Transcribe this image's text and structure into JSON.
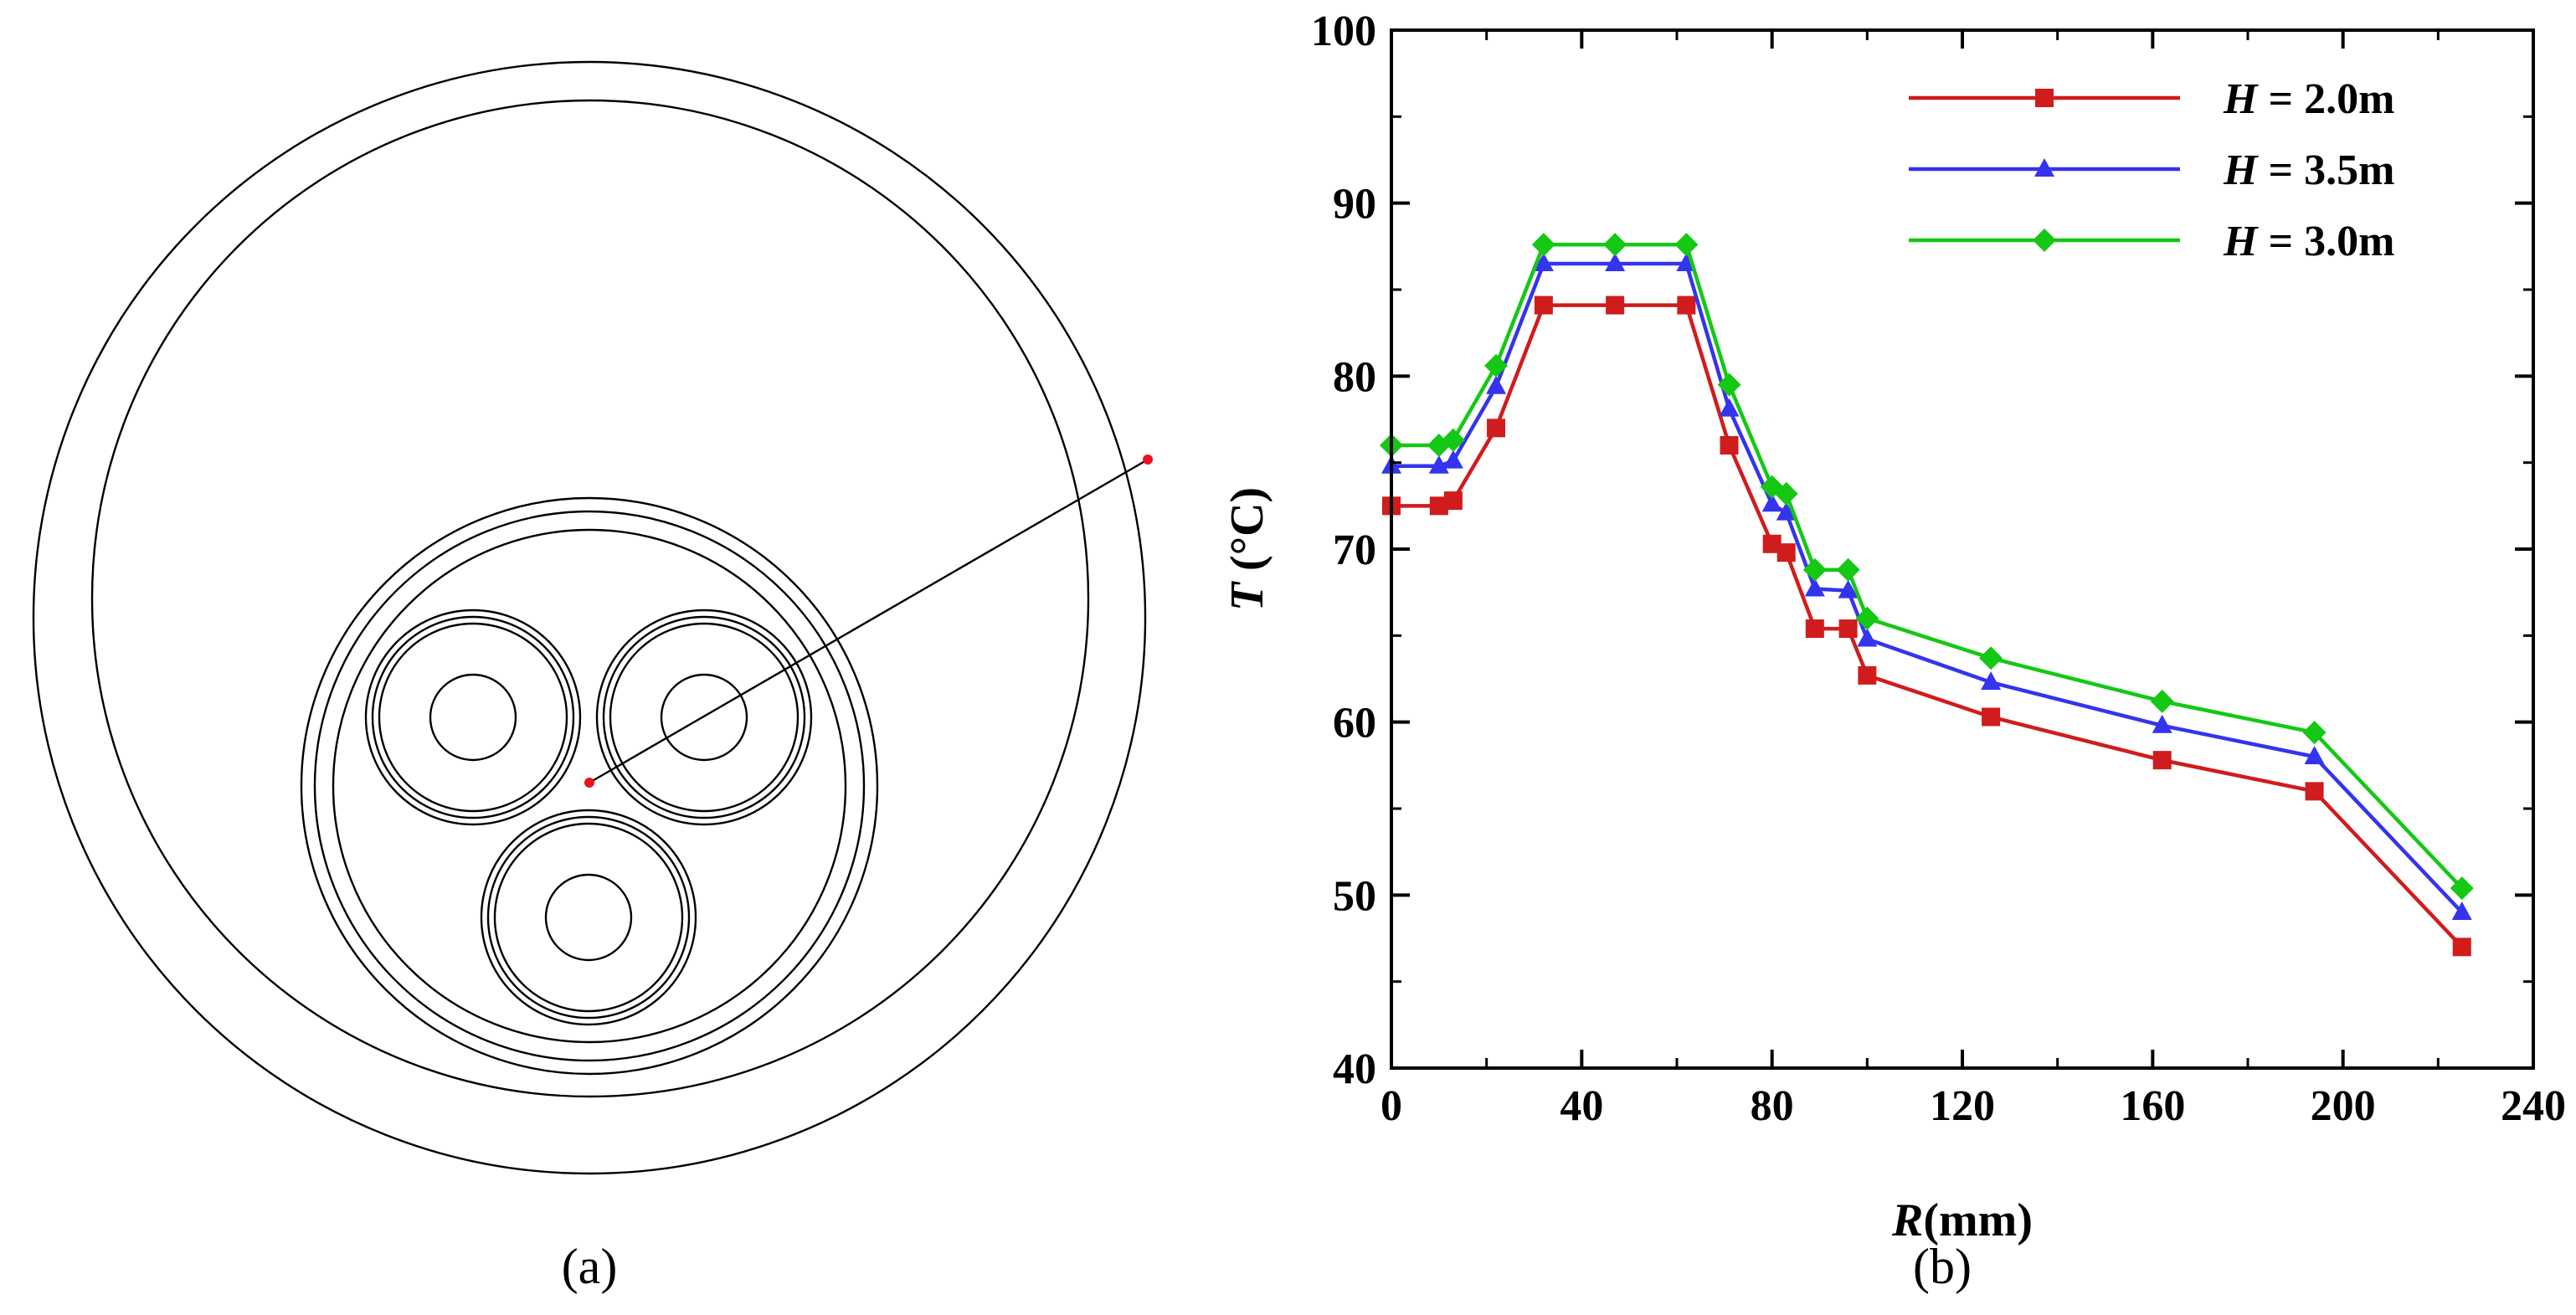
{
  "panels": {
    "a_label": "(a)",
    "b_label": "(b)"
  },
  "cross_section": {
    "marker_color": "#e8141c"
  },
  "chart_data": {
    "type": "line",
    "title": "",
    "xlabel_italic": "R",
    "xlabel_rest": "(mm)",
    "ylabel_italic": "T",
    "ylabel_rest": " (°C)",
    "xlim": [
      0,
      240
    ],
    "ylim": [
      40,
      100
    ],
    "xticks": [
      0,
      40,
      80,
      120,
      160,
      200,
      240
    ],
    "yticks": [
      40,
      50,
      60,
      70,
      80,
      90,
      100
    ],
    "grid": false,
    "legend_position": "top-right",
    "series": [
      {
        "name_italic": "H",
        "name_rest": " = 2.0m",
        "color": "#d01c1c",
        "marker": "square",
        "x": [
          0,
          10,
          13,
          22,
          32,
          47,
          62,
          71,
          80,
          83,
          89,
          96,
          100,
          126,
          162,
          194,
          225
        ],
        "y": [
          72.5,
          72.5,
          72.8,
          77.0,
          84.1,
          84.1,
          84.1,
          76.0,
          70.3,
          69.8,
          65.4,
          65.4,
          62.7,
          60.3,
          57.8,
          56.0,
          47.0
        ]
      },
      {
        "name_italic": "H",
        "name_rest": " = 3.5m",
        "color": "#3434ee",
        "marker": "triangle",
        "x": [
          0,
          10,
          13,
          22,
          32,
          47,
          62,
          71,
          80,
          83,
          89,
          96,
          100,
          126,
          162,
          194,
          225
        ],
        "y": [
          74.8,
          74.8,
          75.1,
          79.4,
          86.5,
          86.5,
          86.5,
          78.1,
          72.6,
          72.1,
          67.7,
          67.6,
          64.8,
          62.3,
          59.8,
          58.0,
          49.0
        ]
      },
      {
        "name_italic": "H",
        "name_rest": " = 3.0m",
        "color": "#14c814",
        "marker": "diamond",
        "x": [
          0,
          10,
          13,
          22,
          32,
          47,
          62,
          71,
          80,
          83,
          89,
          96,
          100,
          126,
          162,
          194,
          225
        ],
        "y": [
          76.0,
          76.0,
          76.3,
          80.6,
          87.6,
          87.6,
          87.6,
          79.5,
          73.6,
          73.2,
          68.8,
          68.8,
          66.0,
          63.7,
          61.2,
          59.4,
          50.4
        ]
      }
    ]
  }
}
